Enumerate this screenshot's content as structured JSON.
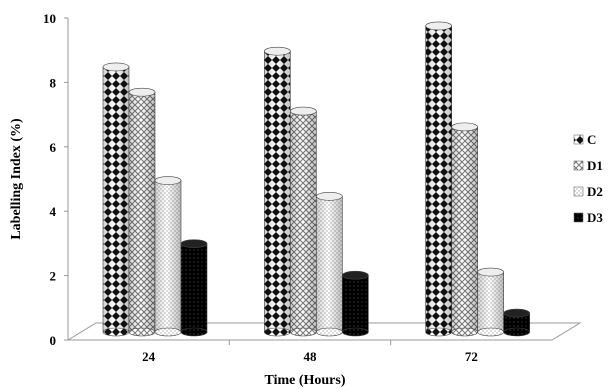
{
  "chart_data": {
    "type": "bar",
    "title": "",
    "xlabel": "Time (Hours)",
    "ylabel": "Labelling Index (%)",
    "categories": [
      "24",
      "48",
      "72"
    ],
    "ylim": [
      0,
      10
    ],
    "yticks": [
      "0",
      "2",
      "4",
      "6",
      "8",
      "10"
    ],
    "grid": false,
    "legend_position": "right",
    "series": [
      {
        "name": "C",
        "values": [
          8.4,
          8.9,
          9.7
        ],
        "pattern": "diamond-checker"
      },
      {
        "name": "D1",
        "values": [
          7.6,
          7.0,
          6.5
        ],
        "pattern": "crosshatch"
      },
      {
        "name": "D2",
        "values": [
          4.8,
          4.3,
          1.9
        ],
        "pattern": "dots"
      },
      {
        "name": "D3",
        "values": [
          2.8,
          1.8,
          0.6
        ],
        "pattern": "black-dots"
      }
    ]
  }
}
